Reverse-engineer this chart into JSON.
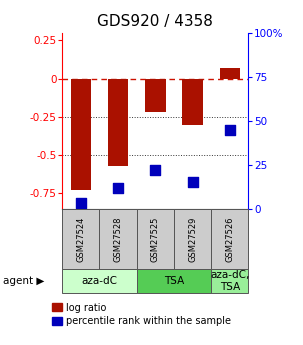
{
  "title": "GDS920 / 4358",
  "samples": [
    "GSM27524",
    "GSM27528",
    "GSM27525",
    "GSM27529",
    "GSM27526"
  ],
  "log_ratios": [
    -0.73,
    -0.57,
    -0.22,
    -0.3,
    0.07
  ],
  "percentile_ranks": [
    3,
    12,
    22,
    15,
    45
  ],
  "ylim_left": [
    -0.85,
    0.3
  ],
  "ylim_right": [
    0,
    100
  ],
  "yticks_left": [
    -0.75,
    -0.5,
    -0.25,
    0.0,
    0.25
  ],
  "yticks_right": [
    0,
    25,
    50,
    75,
    100
  ],
  "ytick_labels_left": [
    "-0.75",
    "-0.5",
    "-0.25",
    "0",
    "0.25"
  ],
  "ytick_labels_right": [
    "0",
    "25",
    "50",
    "75",
    "100%"
  ],
  "agent_groups": [
    {
      "label": "aza-dC",
      "start": 0,
      "end": 2,
      "color": "#ccffcc"
    },
    {
      "label": "TSA",
      "start": 2,
      "end": 4,
      "color": "#55dd55"
    },
    {
      "label": "aza-dC,\nTSA",
      "start": 4,
      "end": 5,
      "color": "#aaffaa"
    }
  ],
  "bar_color": "#aa1100",
  "dot_color": "#0000bb",
  "zero_line_color": "#cc1100",
  "grid_color": "#333333",
  "sample_bg_color": "#cccccc",
  "agent_colors": [
    "#ccffcc",
    "#55cc55",
    "#99ee99"
  ],
  "background_color": "#ffffff",
  "title_fontsize": 11,
  "tick_fontsize": 7.5,
  "sample_fontsize": 6,
  "legend_fontsize": 7,
  "agent_fontsize": 7.5
}
